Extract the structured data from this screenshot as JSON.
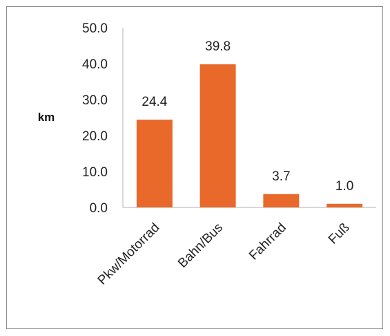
{
  "chart_data": {
    "type": "bar",
    "categories": [
      "Pkw/Motorrad",
      "Bahn/Bus",
      "Fahrrad",
      "Fuß"
    ],
    "values": [
      24.4,
      39.8,
      3.7,
      1.0
    ],
    "data_labels": [
      "24.4",
      "39.8",
      "3.7",
      "1.0"
    ],
    "title": "",
    "xlabel": "",
    "ylabel": "km",
    "ylim": [
      0,
      50
    ],
    "yticks": [
      "0.0",
      "10.0",
      "20.0",
      "30.0",
      "40.0",
      "50.0"
    ],
    "bar_color": "#E8692A",
    "grid": false,
    "legend": "none"
  }
}
